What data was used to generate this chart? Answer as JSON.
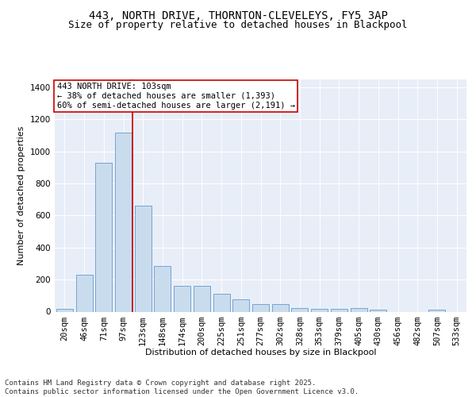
{
  "title_line1": "443, NORTH DRIVE, THORNTON-CLEVELEYS, FY5 3AP",
  "title_line2": "Size of property relative to detached houses in Blackpool",
  "xlabel": "Distribution of detached houses by size in Blackpool",
  "ylabel": "Number of detached properties",
  "bar_values": [
    15,
    230,
    930,
    1120,
    660,
    285,
    160,
    160,
    110,
    75,
    45,
    45,
    20,
    15,
    15,
    20,
    10,
    0,
    0,
    10,
    0
  ],
  "bar_labels": [
    "20sqm",
    "46sqm",
    "71sqm",
    "97sqm",
    "123sqm",
    "148sqm",
    "174sqm",
    "200sqm",
    "225sqm",
    "251sqm",
    "277sqm",
    "302sqm",
    "328sqm",
    "353sqm",
    "379sqm",
    "405sqm",
    "430sqm",
    "456sqm",
    "482sqm",
    "507sqm",
    "533sqm"
  ],
  "bar_color": "#c9dcee",
  "bar_edge_color": "#6699cc",
  "background_color": "#e8eef8",
  "grid_color": "#ffffff",
  "vline_color": "#cc0000",
  "vline_index": 3.45,
  "annotation_text": "443 NORTH DRIVE: 103sqm\n← 38% of detached houses are smaller (1,393)\n60% of semi-detached houses are larger (2,191) →",
  "annotation_box_edgecolor": "#cc0000",
  "ylim": [
    0,
    1450
  ],
  "yticks": [
    0,
    200,
    400,
    600,
    800,
    1000,
    1200,
    1400
  ],
  "footer": "Contains HM Land Registry data © Crown copyright and database right 2025.\nContains public sector information licensed under the Open Government Licence v3.0.",
  "title_fontsize": 10,
  "subtitle_fontsize": 9,
  "axis_label_fontsize": 8,
  "tick_fontsize": 7.5,
  "annotation_fontsize": 7.5,
  "footer_fontsize": 6.5
}
